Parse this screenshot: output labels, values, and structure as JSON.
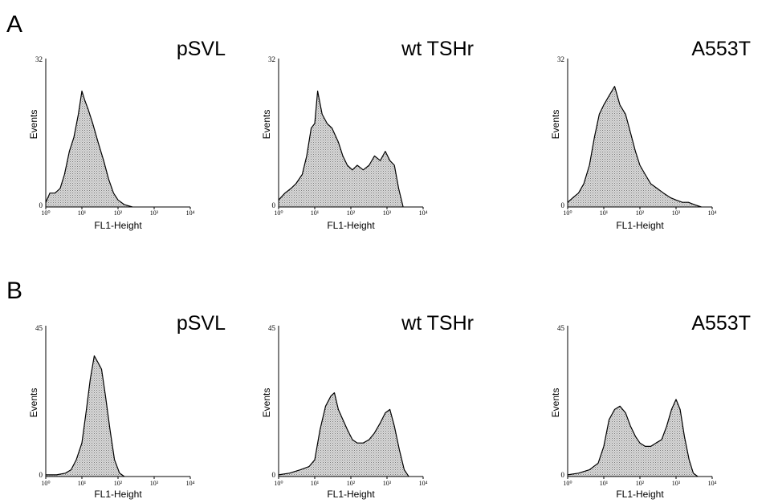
{
  "panels": [
    {
      "letter": "A",
      "y_max_label": "32",
      "y_min_label": "0",
      "ylim": [
        0,
        32
      ],
      "charts": [
        {
          "title": "pSVL",
          "chart_data": {
            "type": "area",
            "xlabel": "FL1-Height",
            "ylabel": "Events",
            "xscale": "log",
            "xlim": [
              1,
              10000
            ],
            "ylim": [
              0,
              32
            ],
            "xticks": [
              "10⁰",
              "10¹",
              "10²",
              "10³",
              "10⁴"
            ],
            "x": [
              1,
              1.3,
              1.8,
              2.5,
              3.3,
              4.5,
              6,
              8,
              10,
              12,
              15,
              20,
              28,
              40,
              55,
              75,
              100,
              150,
              250
            ],
            "y": [
              1,
              3,
              3,
              4,
              7,
              12,
              15,
              20,
              25,
              23,
              21,
              18,
              14,
              10,
              6,
              3,
              1.5,
              0.5,
              0
            ]
          }
        },
        {
          "title": "wt TSHr",
          "chart_data": {
            "type": "area",
            "xlabel": "FL1-Height",
            "ylabel": "Events",
            "xscale": "log",
            "xlim": [
              1,
              10000
            ],
            "ylim": [
              0,
              32
            ],
            "xticks": [
              "10⁰",
              "10¹",
              "10²",
              "10³",
              "10⁴"
            ],
            "x": [
              1,
              1.5,
              2.2,
              3,
              4.5,
              6,
              8,
              10,
              12,
              16,
              22,
              30,
              45,
              60,
              80,
              110,
              150,
              220,
              320,
              450,
              650,
              900,
              1200,
              1600,
              2100,
              2800
            ],
            "y": [
              1.5,
              3,
              4,
              5,
              7,
              11,
              17,
              18,
              25,
              20,
              18,
              17,
              14,
              11,
              9,
              8,
              9,
              8,
              9,
              11,
              10,
              12,
              10,
              9,
              4,
              0
            ]
          }
        },
        {
          "title": "A553T",
          "chart_data": {
            "type": "area",
            "xlabel": "FL1-Height",
            "ylabel": "Events",
            "xscale": "log",
            "xlim": [
              1,
              10000
            ],
            "ylim": [
              0,
              32
            ],
            "xticks": [
              "10⁰",
              "10¹",
              "10²",
              "10³",
              "10⁴"
            ],
            "x": [
              1,
              1.4,
              2,
              2.8,
              4,
              5.5,
              7.5,
              10,
              14,
              20,
              28,
              40,
              55,
              75,
              100,
              140,
              200,
              300,
              450,
              700,
              1000,
              1500,
              2200,
              3200,
              5000
            ],
            "y": [
              1,
              2,
              3,
              5,
              9,
              15,
              20,
              22,
              24,
              26,
              22,
              20,
              16,
              12,
              9,
              7,
              5,
              4,
              3,
              2,
              1.5,
              1,
              1,
              0.5,
              0
            ]
          }
        }
      ]
    },
    {
      "letter": "B",
      "y_max_label": "45",
      "y_min_label": "0",
      "ylim": [
        0,
        45
      ],
      "charts": [
        {
          "title": "pSVL",
          "chart_data": {
            "type": "area",
            "xlabel": "FL1-Height",
            "ylabel": "Events",
            "xscale": "log",
            "xlim": [
              1,
              10000
            ],
            "ylim": [
              0,
              45
            ],
            "xticks": [
              "10⁰",
              "10¹",
              "10²",
              "10³",
              "10⁴"
            ],
            "x": [
              1,
              2,
              3.5,
              5,
              7,
              10,
              13,
              17,
              22,
              28,
              35,
              45,
              60,
              80,
              110,
              150
            ],
            "y": [
              0.5,
              0.5,
              1,
              2,
              5,
              10,
              19,
              29,
              36,
              34,
              32,
              24,
              14,
              5,
              1,
              0
            ]
          }
        },
        {
          "title": "wt TSHr",
          "chart_data": {
            "type": "area",
            "xlabel": "FL1-Height",
            "ylabel": "Events",
            "xscale": "log",
            "xlim": [
              1,
              10000
            ],
            "ylim": [
              0,
              45
            ],
            "xticks": [
              "10⁰",
              "10¹",
              "10²",
              "10³",
              "10⁴"
            ],
            "x": [
              1,
              2,
              4,
              7,
              10,
              14,
              20,
              28,
              35,
              45,
              60,
              80,
              110,
              150,
              220,
              320,
              450,
              650,
              900,
              1200,
              1600,
              2200,
              3000,
              4000
            ],
            "y": [
              0.5,
              1,
              2,
              3,
              5,
              14,
              21,
              24,
              25,
              20,
              17,
              14,
              11,
              10,
              10,
              11,
              13,
              16,
              19,
              20,
              15,
              8,
              2,
              0
            ]
          }
        },
        {
          "title": "A553T",
          "chart_data": {
            "type": "area",
            "xlabel": "FL1-Height",
            "ylabel": "Events",
            "xscale": "log",
            "xlim": [
              1,
              10000
            ],
            "ylim": [
              0,
              45
            ],
            "xticks": [
              "10⁰",
              "10¹",
              "10²",
              "10³",
              "10⁴"
            ],
            "x": [
              1,
              2,
              4,
              7,
              10,
              14,
              20,
              28,
              40,
              55,
              75,
              100,
              140,
              200,
              280,
              400,
              550,
              750,
              1000,
              1300,
              1700,
              2300,
              3000,
              4000
            ],
            "y": [
              0.5,
              1,
              2,
              4,
              9,
              17,
              20,
              21,
              19,
              15,
              12,
              10,
              9,
              9,
              10,
              11,
              15,
              20,
              23,
              20,
              12,
              5,
              1,
              0
            ]
          }
        }
      ]
    }
  ]
}
